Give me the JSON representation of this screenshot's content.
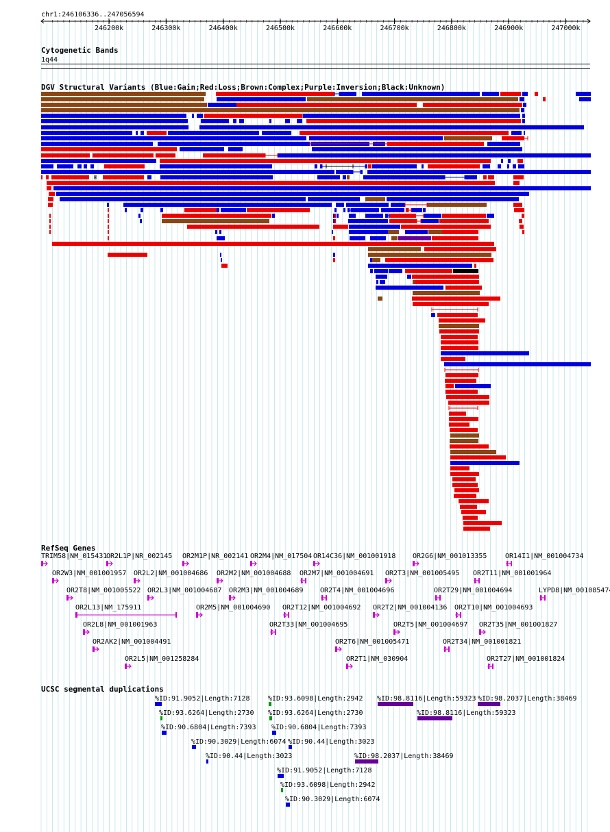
{
  "region": "chr1:246106336..247056594",
  "ruler_ticks": [
    "246200k",
    "246300k",
    "246400k",
    "246500k",
    "246600k",
    "246700k",
    "246800k",
    "246900k",
    "247000k"
  ],
  "tracks": {
    "cytoband": {
      "title": "Cytogenetic Bands",
      "band": "1q44"
    },
    "dgv": {
      "title": "DGV Structural Variants (Blue:Gain;Red:Loss;Brown:Complex;Purple:Inversion;Black:Unknown)"
    },
    "refseq": {
      "title": "RefSeq Genes"
    },
    "segdup": {
      "title": "UCSC segmental duplications"
    }
  },
  "colors": {
    "gain": "#0000e0",
    "loss": "#ee0000",
    "complex": "#8b4513",
    "inversion": "#660099",
    "unknown": "#000000",
    "gene": "#d000d0",
    "grid": "#a8d8e0"
  },
  "genes": [
    {
      "label": "TRIM58|NM_015431"
    },
    {
      "label": "OR2L1P|NR_002145"
    },
    {
      "label": "OR2M1P|NR_002141"
    },
    {
      "label": "OR2M4|NM_017504"
    },
    {
      "label": "OR14C36|NM_001001918"
    },
    {
      "label": "OR2G6|NM_001013355"
    },
    {
      "label": "OR14I1|NM_001004734"
    },
    {
      "label": "OR2W3|NM_001001957"
    },
    {
      "label": "OR2L2|NM_001004686"
    },
    {
      "label": "OR2M2|NM_001004688"
    },
    {
      "label": "OR2M7|NM_001004691"
    },
    {
      "label": "OR2T3|NM_001005495"
    },
    {
      "label": "OR2T11|NM_001001964"
    },
    {
      "label": "OR2T8|NM_001005522"
    },
    {
      "label": "OR2L3|NM_001004687"
    },
    {
      "label": "OR2M3|NM_001004689"
    },
    {
      "label": "OR2T4|NM_001004696"
    },
    {
      "label": "OR2T29|NM_001004694"
    },
    {
      "label": "LYPD8|NM_001085474"
    },
    {
      "label": "OR2L13|NM_175911"
    },
    {
      "label": "OR2M5|NM_001004690"
    },
    {
      "label": "OR2T12|NM_001004692"
    },
    {
      "label": "OR2T2|NM_001004136"
    },
    {
      "label": "OR2T10|NM_001004693"
    },
    {
      "label": "OR2L8|NM_001001963"
    },
    {
      "label": "OR2T33|NM_001004695"
    },
    {
      "label": "OR2T5|NM_001004697"
    },
    {
      "label": "OR2T35|NM_001001827"
    },
    {
      "label": "OR2AK2|NM_001004491"
    },
    {
      "label": "OR2T6|NM_001005471"
    },
    {
      "label": "OR2T34|NM_001001821"
    },
    {
      "label": "OR2L5|NM_001258284"
    },
    {
      "label": "OR2T1|NM_030904"
    },
    {
      "label": "OR2T27|NM_001001824"
    }
  ],
  "segdups": [
    {
      "label": "%ID:91.9052|Length:7128"
    },
    {
      "label": "%ID:93.6098|Length:2942"
    },
    {
      "label": "%ID:98.8116|Length:59323"
    },
    {
      "label": "%ID:98.2037|Length:38469"
    },
    {
      "label": "%ID:93.6264|Length:2730"
    },
    {
      "label": "%ID:93.6264|Length:2730"
    },
    {
      "label": "%ID:98.8116|Length:59323"
    },
    {
      "label": "%ID:90.6804|Length:7393"
    },
    {
      "label": "%ID:90.6804|Length:7393"
    },
    {
      "label": "%ID:90.3029|Length:6074"
    },
    {
      "label": "%ID:90.44|Length:3023"
    },
    {
      "label": "%ID:90.44|Length:3023"
    },
    {
      "label": "%ID:98.2037|Length:38469"
    },
    {
      "label": "%ID:91.9052|Length:7128"
    },
    {
      "label": "%ID:93.6098|Length:2942"
    },
    {
      "label": "%ID:90.3029|Length:6074"
    }
  ]
}
